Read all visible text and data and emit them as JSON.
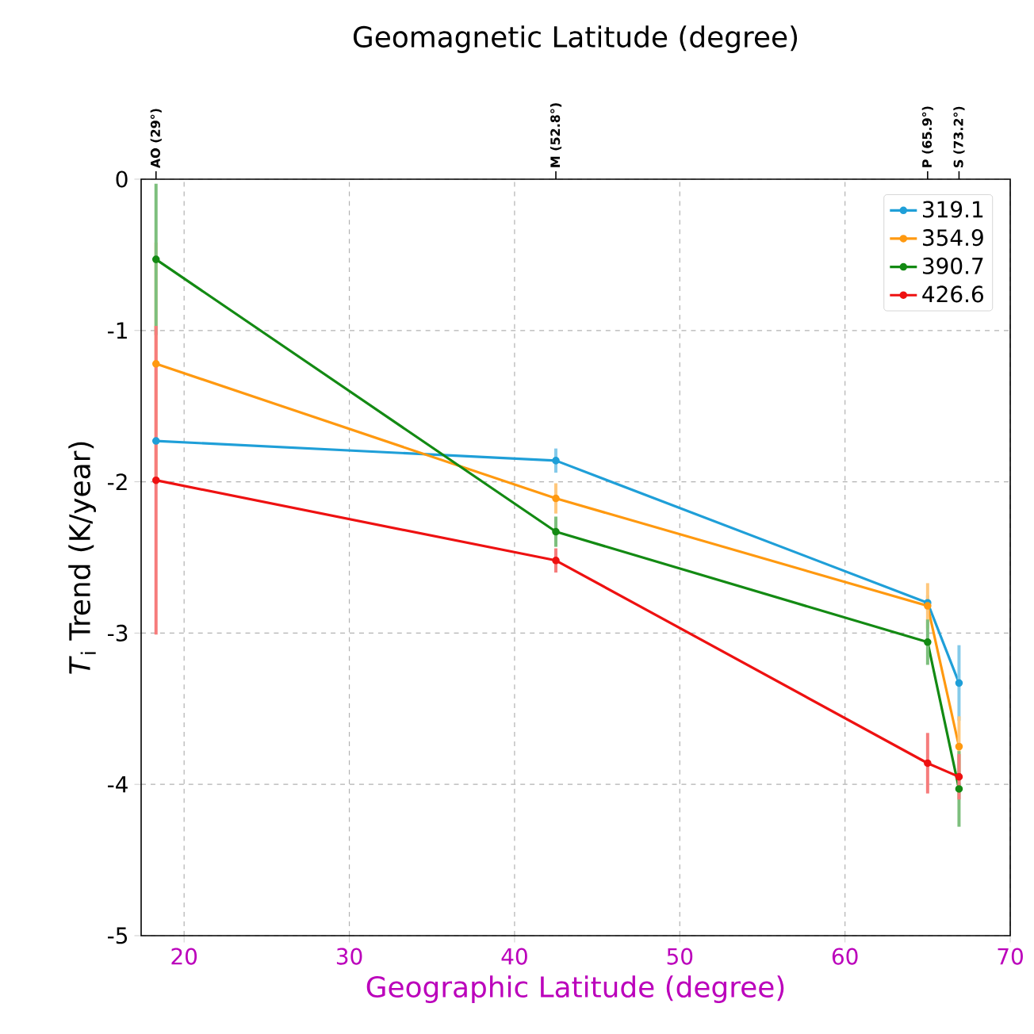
{
  "chart_data": {
    "type": "line",
    "xlabel": "Geographic Latitude (degree)",
    "ylabel": "*T*$_{i}$ Trend (K/year)",
    "x2label": "Geomagnetic Latitude (degree)",
    "x": [
      18.3,
      42.5,
      65.0,
      66.9
    ],
    "series": [
      {
        "name": "319.1",
        "color": "#1f9fd8",
        "values": [
          -1.73,
          -1.86,
          -2.8,
          -3.33
        ],
        "errors": [
          null,
          0.08,
          0.05,
          0.25
        ]
      },
      {
        "name": "354.9",
        "color": "#ff9910",
        "values": [
          -1.22,
          -2.11,
          -2.82,
          -3.75
        ],
        "errors": [
          0.8,
          0.1,
          0.15,
          0.2
        ]
      },
      {
        "name": "390.7",
        "color": "#138a13",
        "values": [
          -0.53,
          -2.33,
          -3.06,
          -4.03
        ],
        "errors": [
          0.5,
          0.1,
          0.15,
          0.25
        ]
      },
      {
        "name": "426.6",
        "color": "#ee1111",
        "values": [
          -1.99,
          -2.52,
          -3.86,
          -3.95
        ],
        "errors": [
          1.02,
          0.08,
          0.2,
          0.15
        ]
      }
    ],
    "xlim": [
      17.4,
      70
    ],
    "ylim": [
      -5,
      0
    ],
    "xticks": [
      20,
      30,
      40,
      50,
      60,
      70
    ],
    "yticks": [
      -5,
      -4,
      -3,
      -2,
      -1,
      0
    ],
    "annotations": [
      {
        "text": "AO (29°)",
        "x": 18.3
      },
      {
        "text": "M (52.8°)",
        "x": 42.5
      },
      {
        "text": "P (65.9°)",
        "x": 65.0
      },
      {
        "text": "S (73.2°)",
        "x": 66.9
      }
    ],
    "grid": true,
    "legend": "top right",
    "marker": "circle",
    "line_style": "solid"
  }
}
